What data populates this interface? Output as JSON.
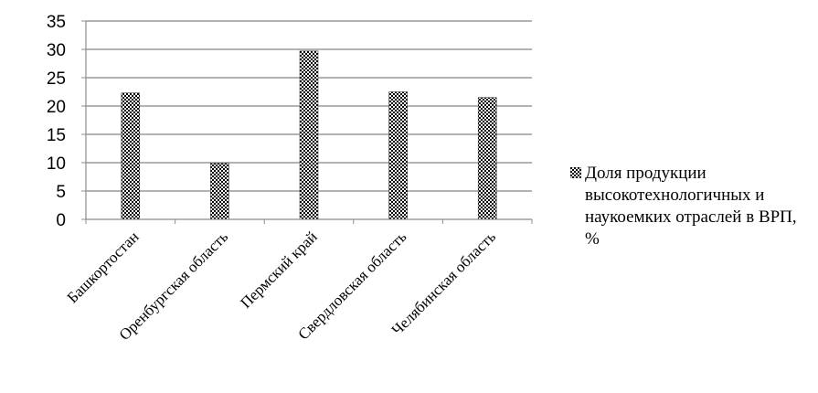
{
  "chart_data": {
    "type": "bar",
    "categories": [
      "Башкортостан",
      "Оренбургская область",
      "Пермский край",
      "Свердловская область",
      "Челябинская область"
    ],
    "series": [
      {
        "name": "Доля продукции высокотехнологичных и наукоемких отраслей в ВРП, %",
        "values": [
          22.3,
          9.9,
          29.7,
          22.5,
          21.5
        ]
      }
    ],
    "ylim": [
      0,
      35
    ],
    "yticks": [
      0,
      5,
      10,
      15,
      20,
      25,
      30,
      35
    ],
    "grid": true,
    "legend_position": "right",
    "bar_pattern": "checkered",
    "colors": {
      "bar": "#000000",
      "grid": "#9a9a9a",
      "axis": "#8c8c8c"
    }
  }
}
